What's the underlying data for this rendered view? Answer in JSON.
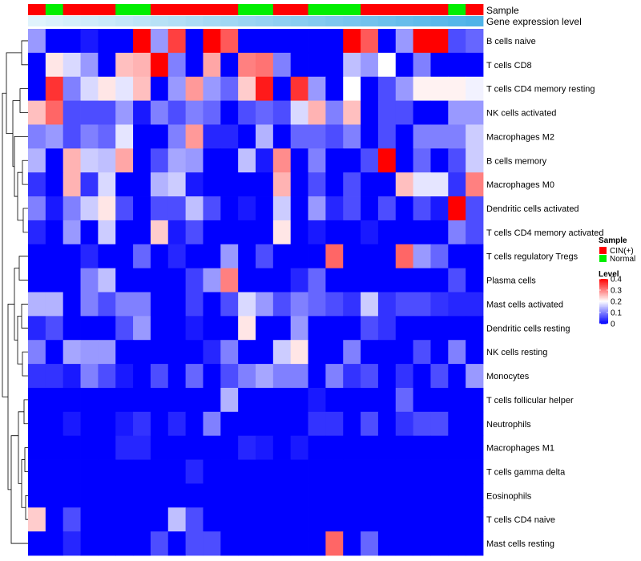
{
  "chart_data": {
    "type": "heatmap",
    "annotation_labels": [
      "Sample",
      "Gene expression level"
    ],
    "sample_groups": [
      "CIN(+)",
      "Normal",
      "CIN(+)",
      "CIN(+)",
      "CIN(+)",
      "Normal",
      "Normal",
      "CIN(+)",
      "CIN(+)",
      "CIN(+)",
      "CIN(+)",
      "CIN(+)",
      "Normal",
      "Normal",
      "CIN(+)",
      "CIN(+)",
      "Normal",
      "Normal",
      "Normal",
      "CIN(+)",
      "CIN(+)",
      "CIN(+)",
      "CIN(+)",
      "CIN(+)",
      "Normal",
      "CIN(+)"
    ],
    "gene_expression_level": [
      0.0,
      0.04,
      0.08,
      0.12,
      0.16,
      0.2,
      0.24,
      0.28,
      0.32,
      0.36,
      0.4,
      0.44,
      0.48,
      0.52,
      0.56,
      0.6,
      0.64,
      0.68,
      0.72,
      0.76,
      0.8,
      0.84,
      0.88,
      0.92,
      0.96,
      1.0
    ],
    "rows": [
      "B cells naive",
      "T cells CD8",
      "T cells CD4 memory resting",
      "NK cells activated",
      "Macrophages M2",
      "B cells memory",
      "Macrophages M0",
      "Dendritic cells activated",
      "T cells CD4 memory activated",
      "T cells regulatory  Tregs",
      "Plasma cells",
      "Mast cells activated",
      "Dendritic cells resting",
      "NK cells resting",
      "Monocytes",
      "T cells follicular helper",
      "Neutrophils",
      "Macrophages M1",
      "T cells gamma delta",
      "Eosinophils",
      "T cells CD4 naive",
      "Mast cells resting"
    ],
    "values": [
      [
        0.12,
        0.0,
        0.0,
        0.02,
        0.0,
        0.0,
        0.4,
        0.12,
        0.35,
        0.0,
        0.4,
        0.33,
        0.0,
        0.0,
        0.0,
        0.0,
        0.0,
        0.0,
        0.4,
        0.33,
        0.0,
        0.12,
        0.4,
        0.4,
        0.06,
        0.08
      ],
      [
        0.0,
        0.22,
        0.17,
        0.12,
        0.0,
        0.25,
        0.26,
        0.4,
        0.1,
        0.0,
        0.27,
        0.0,
        0.3,
        0.31,
        0.1,
        0.0,
        0.0,
        0.0,
        0.15,
        0.12,
        0.2,
        0.0,
        0.1,
        0.0,
        0.0,
        0.0
      ],
      [
        0.0,
        0.36,
        0.1,
        0.17,
        0.22,
        0.18,
        0.25,
        0.0,
        0.12,
        0.28,
        0.12,
        0.08,
        0.24,
        0.38,
        0.0,
        0.36,
        0.12,
        0.0,
        0.2,
        0.0,
        0.06,
        0.12,
        0.21,
        0.21,
        0.21,
        0.19
      ],
      [
        0.25,
        0.32,
        0.06,
        0.06,
        0.06,
        0.12,
        0.02,
        0.1,
        0.06,
        0.1,
        0.08,
        0.0,
        0.06,
        0.08,
        0.06,
        0.17,
        0.26,
        0.1,
        0.25,
        0.0,
        0.06,
        0.06,
        0.0,
        0.0,
        0.12,
        0.12
      ],
      [
        0.1,
        0.12,
        0.06,
        0.1,
        0.08,
        0.18,
        0.0,
        0.0,
        0.1,
        0.28,
        0.03,
        0.03,
        0.0,
        0.14,
        0.0,
        0.08,
        0.08,
        0.06,
        0.1,
        0.0,
        0.06,
        0.0,
        0.1,
        0.1,
        0.1,
        0.16
      ],
      [
        0.14,
        0.0,
        0.26,
        0.16,
        0.15,
        0.27,
        0.0,
        0.06,
        0.13,
        0.12,
        0.0,
        0.0,
        0.15,
        0.02,
        0.29,
        0.0,
        0.1,
        0.0,
        0.0,
        0.06,
        0.4,
        0.0,
        0.08,
        0.0,
        0.06,
        0.16
      ],
      [
        0.04,
        0.0,
        0.26,
        0.04,
        0.17,
        0.0,
        0.0,
        0.14,
        0.16,
        0.02,
        0.0,
        0.0,
        0.0,
        0.0,
        0.26,
        0.0,
        0.06,
        0.0,
        0.06,
        0.0,
        0.0,
        0.25,
        0.18,
        0.18,
        0.04,
        0.3
      ],
      [
        0.1,
        0.02,
        0.1,
        0.16,
        0.22,
        0.06,
        0.0,
        0.06,
        0.06,
        0.15,
        0.06,
        0.0,
        0.02,
        0.0,
        0.16,
        0.0,
        0.12,
        0.03,
        0.06,
        0.0,
        0.06,
        0.0,
        0.06,
        0.02,
        0.4,
        0.06
      ],
      [
        0.03,
        0.0,
        0.12,
        0.0,
        0.16,
        0.0,
        0.0,
        0.24,
        0.02,
        0.06,
        0.0,
        0.0,
        0.0,
        0.0,
        0.22,
        0.0,
        0.02,
        0.0,
        0.0,
        0.02,
        0.0,
        0.0,
        0.0,
        0.0,
        0.1,
        0.06
      ],
      [
        0.0,
        0.0,
        0.0,
        0.03,
        0.0,
        0.0,
        0.08,
        0.0,
        0.03,
        0.0,
        0.0,
        0.12,
        0.0,
        0.06,
        0.0,
        0.0,
        0.0,
        0.32,
        0.0,
        0.0,
        0.0,
        0.32,
        0.12,
        0.08,
        0.0,
        0.0
      ],
      [
        0.0,
        0.0,
        0.0,
        0.1,
        0.15,
        0.0,
        0.0,
        0.0,
        0.0,
        0.05,
        0.12,
        0.3,
        0.0,
        0.0,
        0.0,
        0.03,
        0.08,
        0.0,
        0.0,
        0.0,
        0.0,
        0.0,
        0.0,
        0.0,
        0.06,
        0.0
      ],
      [
        0.14,
        0.14,
        0.0,
        0.1,
        0.06,
        0.1,
        0.1,
        0.0,
        0.0,
        0.05,
        0.0,
        0.06,
        0.17,
        0.12,
        0.06,
        0.1,
        0.08,
        0.06,
        0.04,
        0.16,
        0.04,
        0.06,
        0.06,
        0.04,
        0.03,
        0.03
      ],
      [
        0.03,
        0.06,
        0.0,
        0.0,
        0.0,
        0.06,
        0.12,
        0.0,
        0.0,
        0.02,
        0.0,
        0.0,
        0.22,
        0.0,
        0.0,
        0.12,
        0.0,
        0.0,
        0.0,
        0.06,
        0.04,
        0.0,
        0.0,
        0.0,
        0.0,
        0.0
      ],
      [
        0.1,
        0.0,
        0.13,
        0.12,
        0.12,
        0.0,
        0.0,
        0.0,
        0.0,
        0.0,
        0.03,
        0.1,
        0.0,
        0.0,
        0.16,
        0.22,
        0.0,
        0.0,
        0.1,
        0.0,
        0.0,
        0.0,
        0.06,
        0.0,
        0.1,
        0.0
      ],
      [
        0.04,
        0.04,
        0.02,
        0.1,
        0.06,
        0.02,
        0.0,
        0.06,
        0.0,
        0.08,
        0.0,
        0.06,
        0.1,
        0.13,
        0.1,
        0.1,
        0.0,
        0.1,
        0.04,
        0.06,
        0.0,
        0.04,
        0.0,
        0.06,
        0.0,
        0.12
      ],
      [
        0.0,
        0.0,
        0.0,
        0.0,
        0.0,
        0.0,
        0.0,
        0.0,
        0.0,
        0.0,
        0.0,
        0.14,
        0.0,
        0.0,
        0.0,
        0.0,
        0.02,
        0.0,
        0.0,
        0.0,
        0.0,
        0.08,
        0.0,
        0.0,
        0.0,
        0.0
      ],
      [
        0.0,
        0.0,
        0.02,
        0.0,
        0.0,
        0.02,
        0.04,
        0.0,
        0.03,
        0.0,
        0.1,
        0.0,
        0.0,
        0.0,
        0.0,
        0.0,
        0.04,
        0.04,
        0.0,
        0.06,
        0.0,
        0.04,
        0.06,
        0.06,
        0.0,
        0.0
      ],
      [
        0.0,
        0.0,
        0.0,
        0.0,
        0.0,
        0.03,
        0.03,
        0.0,
        0.0,
        0.0,
        0.0,
        0.0,
        0.03,
        0.02,
        0.0,
        0.02,
        0.0,
        0.0,
        0.0,
        0.0,
        0.0,
        0.0,
        0.0,
        0.0,
        0.0,
        0.0
      ],
      [
        0.0,
        0.0,
        0.0,
        0.0,
        0.0,
        0.0,
        0.0,
        0.0,
        0.0,
        0.03,
        0.0,
        0.0,
        0.0,
        0.0,
        0.0,
        0.0,
        0.0,
        0.0,
        0.0,
        0.0,
        0.0,
        0.0,
        0.0,
        0.0,
        0.0,
        0.0
      ],
      [
        0.0,
        0.0,
        0.0,
        0.0,
        0.0,
        0.0,
        0.0,
        0.0,
        0.0,
        0.0,
        0.0,
        0.0,
        0.0,
        0.0,
        0.0,
        0.0,
        0.0,
        0.0,
        0.0,
        0.0,
        0.0,
        0.0,
        0.0,
        0.0,
        0.0,
        0.0
      ],
      [
        0.24,
        0.0,
        0.06,
        0.0,
        0.0,
        0.0,
        0.0,
        0.0,
        0.15,
        0.06,
        0.0,
        0.0,
        0.0,
        0.0,
        0.0,
        0.0,
        0.0,
        0.0,
        0.0,
        0.0,
        0.0,
        0.0,
        0.0,
        0.0,
        0.0,
        0.0
      ],
      [
        0.0,
        0.0,
        0.03,
        0.0,
        0.0,
        0.0,
        0.0,
        0.06,
        0.0,
        0.06,
        0.06,
        0.0,
        0.0,
        0.0,
        0.0,
        0.0,
        0.0,
        0.32,
        0.0,
        0.08,
        0.0,
        0.0,
        0.0,
        0.0,
        0.0,
        0.0
      ]
    ],
    "legend": {
      "sample_title": "Sample",
      "sample_items": [
        {
          "label": "CIN(+)",
          "color": "#ff0000"
        },
        {
          "label": "Normal",
          "color": "#00ee00"
        }
      ],
      "level_title": "Level",
      "level_ticks": [
        0.4,
        0.3,
        0.2,
        0.1,
        0
      ],
      "level_range": [
        0,
        0.4
      ]
    },
    "colors": {
      "low": "#0000ff",
      "mid": "#ffffff",
      "high": "#ff0000",
      "mid_value": 0.2,
      "annotation_low": "#e0f3fc",
      "annotation_high": "#4fb3e8"
    }
  }
}
